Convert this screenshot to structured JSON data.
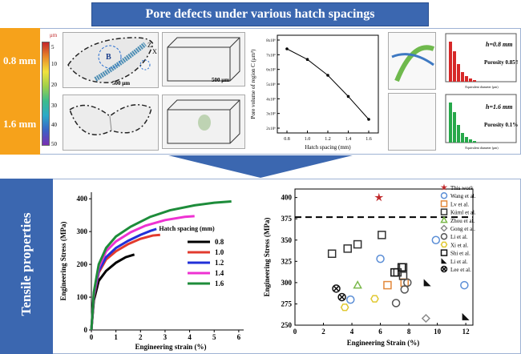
{
  "banner": {
    "title": "Pore defects under various hatch spacings"
  },
  "top": {
    "row1_label": "0.8 mm",
    "row2_label": "1.6 mm",
    "colorbar": {
      "unit": "μm",
      "ticks": [
        "5",
        "10",
        "20",
        "30",
        "40",
        "50"
      ]
    },
    "scale_bar_1": "500 μm",
    "scale_bar_2": "500 μm",
    "region_label": "B",
    "axis_z": "Z",
    "axis_x": "X",
    "mini_chart": {
      "ylabel": "Pore volume of region C (μm³)",
      "xlabel": "Hatch spacing (mm)",
      "x_ticks": [
        "0.8",
        "1.0",
        "1.2",
        "1.4",
        "1.6"
      ],
      "y_ticks": [
        "2x10⁶",
        "3x10⁶",
        "4x10⁶",
        "5x10⁶",
        "6x10⁶",
        "7x10⁶",
        "8x10⁶"
      ]
    },
    "hist1": {
      "title": "h=0.8 mm",
      "porosity": "Porosity 0.85%",
      "xlabel": "Equivalent diameter (μm)"
    },
    "hist2": {
      "title": "h=1.6 mm",
      "porosity": "Porosity 0.1%",
      "xlabel": "Equivalent diameter (μm)"
    }
  },
  "bottom": {
    "side_label": "Tensile properties"
  },
  "chart_data": [
    {
      "type": "line",
      "xlabel": "Engineering strain (%)",
      "ylabel": "Engineering Stress (MPa)",
      "xlim": [
        0,
        6.2
      ],
      "ylim": [
        0,
        420
      ],
      "x_ticks": [
        "0",
        "1",
        "2",
        "3",
        "4",
        "5",
        "6"
      ],
      "y_ticks": [
        "0",
        "100",
        "200",
        "300",
        "400"
      ],
      "legend_title": "Hatch spacing (mm)",
      "series": [
        {
          "name": "0.8",
          "color": "#000000",
          "x": [
            0,
            0.1,
            0.3,
            0.6,
            1.0,
            1.4,
            1.75
          ],
          "y": [
            0,
            90,
            150,
            180,
            205,
            222,
            230
          ]
        },
        {
          "name": "1.0",
          "color": "#e23b2e",
          "x": [
            0,
            0.1,
            0.3,
            0.6,
            1.0,
            1.5,
            2.0,
            2.5,
            2.8
          ],
          "y": [
            0,
            100,
            175,
            215,
            240,
            262,
            278,
            288,
            290
          ]
        },
        {
          "name": "1.2",
          "color": "#2130d8",
          "x": [
            0,
            0.1,
            0.3,
            0.6,
            1.0,
            1.5,
            2.0,
            2.4,
            2.65
          ],
          "y": [
            0,
            105,
            180,
            222,
            250,
            272,
            290,
            302,
            308
          ]
        },
        {
          "name": "1.4",
          "color": "#ee32d2",
          "x": [
            0,
            0.1,
            0.3,
            0.6,
            1.0,
            1.6,
            2.2,
            3.0,
            3.8,
            4.2
          ],
          "y": [
            0,
            110,
            190,
            240,
            270,
            298,
            318,
            335,
            345,
            347
          ]
        },
        {
          "name": "1.6",
          "color": "#1d8c3a",
          "x": [
            0,
            0.1,
            0.3,
            0.6,
            1.0,
            1.6,
            2.4,
            3.2,
            4.2,
            5.0,
            5.7
          ],
          "y": [
            0,
            115,
            200,
            250,
            285,
            315,
            345,
            365,
            380,
            388,
            392
          ]
        }
      ]
    },
    {
      "type": "scatter",
      "xlabel": "Engineering Strain (%)",
      "ylabel": "Engineering Stress (MPa)",
      "xlim": [
        0,
        12.5
      ],
      "ylim": [
        250,
        410
      ],
      "x_ticks": [
        "0",
        "2",
        "4",
        "6",
        "8",
        "10",
        "12"
      ],
      "y_ticks": [
        "250",
        "275",
        "300",
        "325",
        "350",
        "375",
        "400"
      ],
      "reference_line_y": 377,
      "series": [
        {
          "name": "This work",
          "marker": "star",
          "color": "#c0282a",
          "points": [
            [
              5.9,
              400
            ]
          ]
        },
        {
          "name": "Wang et al.",
          "marker": "circle",
          "color": "#5b8ed6",
          "points": [
            [
              3.9,
              280
            ],
            [
              6.0,
              328
            ],
            [
              9.9,
              350
            ],
            [
              11.9,
              297
            ]
          ]
        },
        {
          "name": "Lv et al.",
          "marker": "square",
          "color": "#e3883a",
          "points": [
            [
              6.5,
              297
            ],
            [
              7.7,
              300
            ]
          ]
        },
        {
          "name": "Kürnl et al.",
          "marker": "square",
          "color": "#333333",
          "points": [
            [
              2.6,
              334
            ],
            [
              3.7,
              340
            ],
            [
              4.4,
              345
            ],
            [
              6.1,
              356
            ],
            [
              7.2,
              312
            ],
            [
              7.6,
              318
            ],
            [
              7.6,
              308
            ]
          ]
        },
        {
          "name": "Zhou et al.",
          "marker": "triangle",
          "color": "#7ab84a",
          "points": [
            [
              4.4,
              297
            ]
          ]
        },
        {
          "name": "Gong et al.",
          "marker": "diamond",
          "color": "#8a8a8a",
          "points": [
            [
              9.2,
              258
            ]
          ]
        },
        {
          "name": "Li et al.",
          "marker": "circle",
          "color": "#555555",
          "points": [
            [
              7.9,
              300
            ],
            [
              7.7,
              292
            ],
            [
              7.1,
              276
            ]
          ]
        },
        {
          "name": "Xi et al.",
          "marker": "hexagon",
          "color": "#e0c830",
          "points": [
            [
              3.5,
              271
            ],
            [
              5.6,
              281
            ]
          ]
        },
        {
          "name": "Shi et al.",
          "marker": "square",
          "color": "#111111",
          "points": [
            [
              7.5,
              318
            ],
            [
              7.0,
              312
            ]
          ]
        },
        {
          "name": "Li et al.",
          "marker": "righttriangle",
          "color": "#111111",
          "points": [
            [
              9.3,
              300
            ],
            [
              12.0,
              260
            ]
          ]
        },
        {
          "name": "Lee et al.",
          "marker": "crosscircle",
          "color": "#111111",
          "points": [
            [
              2.9,
              293
            ],
            [
              3.3,
              283
            ]
          ]
        }
      ]
    }
  ]
}
